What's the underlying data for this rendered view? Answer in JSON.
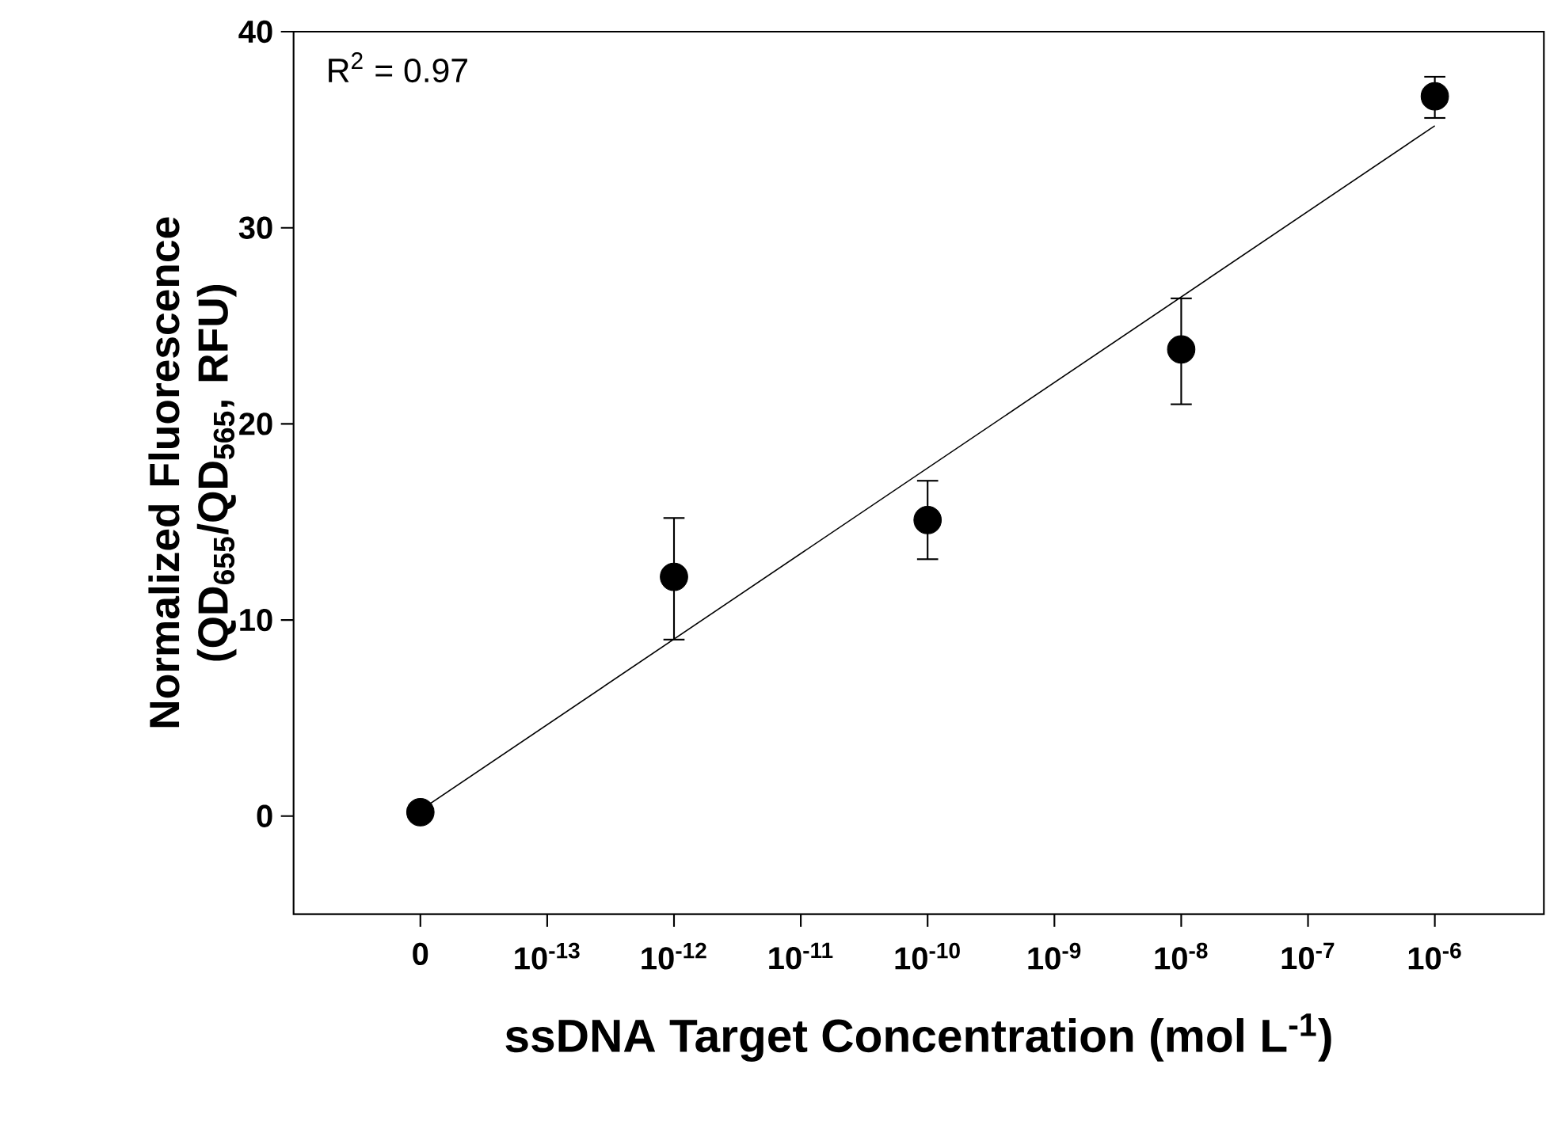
{
  "chart_data": {
    "type": "scatter",
    "xlabel": "ssDNA Target Concentration (mol L$^{-1}$)",
    "ylabel": "Normalized Fluorescence (QD$_{655}$/QD$_{565}$, RFU)",
    "annotations": [
      "R$^{2}$ = 0.97"
    ],
    "categories": [
      "0",
      "10$^{-13}$",
      "10$^{-12}$",
      "10$^{-11}$",
      "10$^{-10}$",
      "10$^{-9}$",
      "10$^{-8}$",
      "10$^{-7}$",
      "10$^{-6}$"
    ],
    "ylim": [
      -5,
      40
    ],
    "yticks": [
      0,
      10,
      20,
      30,
      40
    ],
    "series": [
      {
        "color": "#000000",
        "marker": "circle",
        "x": [
          "0",
          "10$^{-12}$",
          "10$^{-10}$",
          "10$^{-8}$",
          "10$^{-6}$"
        ],
        "values": [
          0.2,
          12.2,
          15.1,
          23.8,
          36.7
        ],
        "errors": [
          null,
          [
            9.0,
            15.2
          ],
          [
            13.1,
            17.1
          ],
          [
            21.0,
            26.4
          ],
          [
            35.6,
            37.7
          ]
        ]
      },
      {
        "type": "line",
        "color": "#000000",
        "line_style": "solid",
        "marker": "none",
        "x": [
          "0",
          "10$^{-6}$"
        ],
        "values": [
          0.3,
          35.2
        ]
      }
    ]
  }
}
